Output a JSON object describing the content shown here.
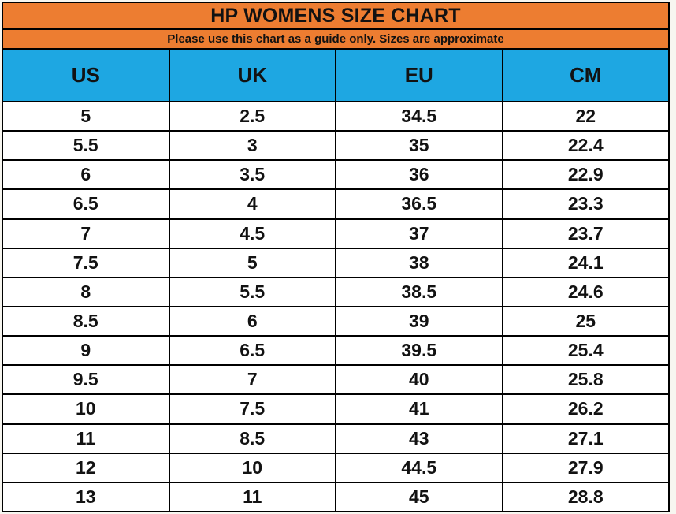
{
  "title": "HP WOMENS SIZE CHART",
  "subtitle": "Please use this chart as a guide only. Sizes are approximate",
  "chart_data": {
    "type": "table",
    "title": "HP WOMENS SIZE CHART",
    "columns": [
      "US",
      "UK",
      "EU",
      "CM"
    ],
    "rows": [
      [
        "5",
        "2.5",
        "34.5",
        "22"
      ],
      [
        "5.5",
        "3",
        "35",
        "22.4"
      ],
      [
        "6",
        "3.5",
        "36",
        "22.9"
      ],
      [
        "6.5",
        "4",
        "36.5",
        "23.3"
      ],
      [
        "7",
        "4.5",
        "37",
        "23.7"
      ],
      [
        "7.5",
        "5",
        "38",
        "24.1"
      ],
      [
        "8",
        "5.5",
        "38.5",
        "24.6"
      ],
      [
        "8.5",
        "6",
        "39",
        "25"
      ],
      [
        "9",
        "6.5",
        "39.5",
        "25.4"
      ],
      [
        "9.5",
        "7",
        "40",
        "25.8"
      ],
      [
        "10",
        "7.5",
        "41",
        "26.2"
      ],
      [
        "11",
        "8.5",
        "43",
        "27.1"
      ],
      [
        "12",
        "10",
        "44.5",
        "27.9"
      ],
      [
        "13",
        "11",
        "45",
        "28.8"
      ]
    ]
  },
  "colors": {
    "orange": "#ED7D31",
    "blue": "#1EA7E2",
    "border": "#000000",
    "text": "#121212"
  }
}
